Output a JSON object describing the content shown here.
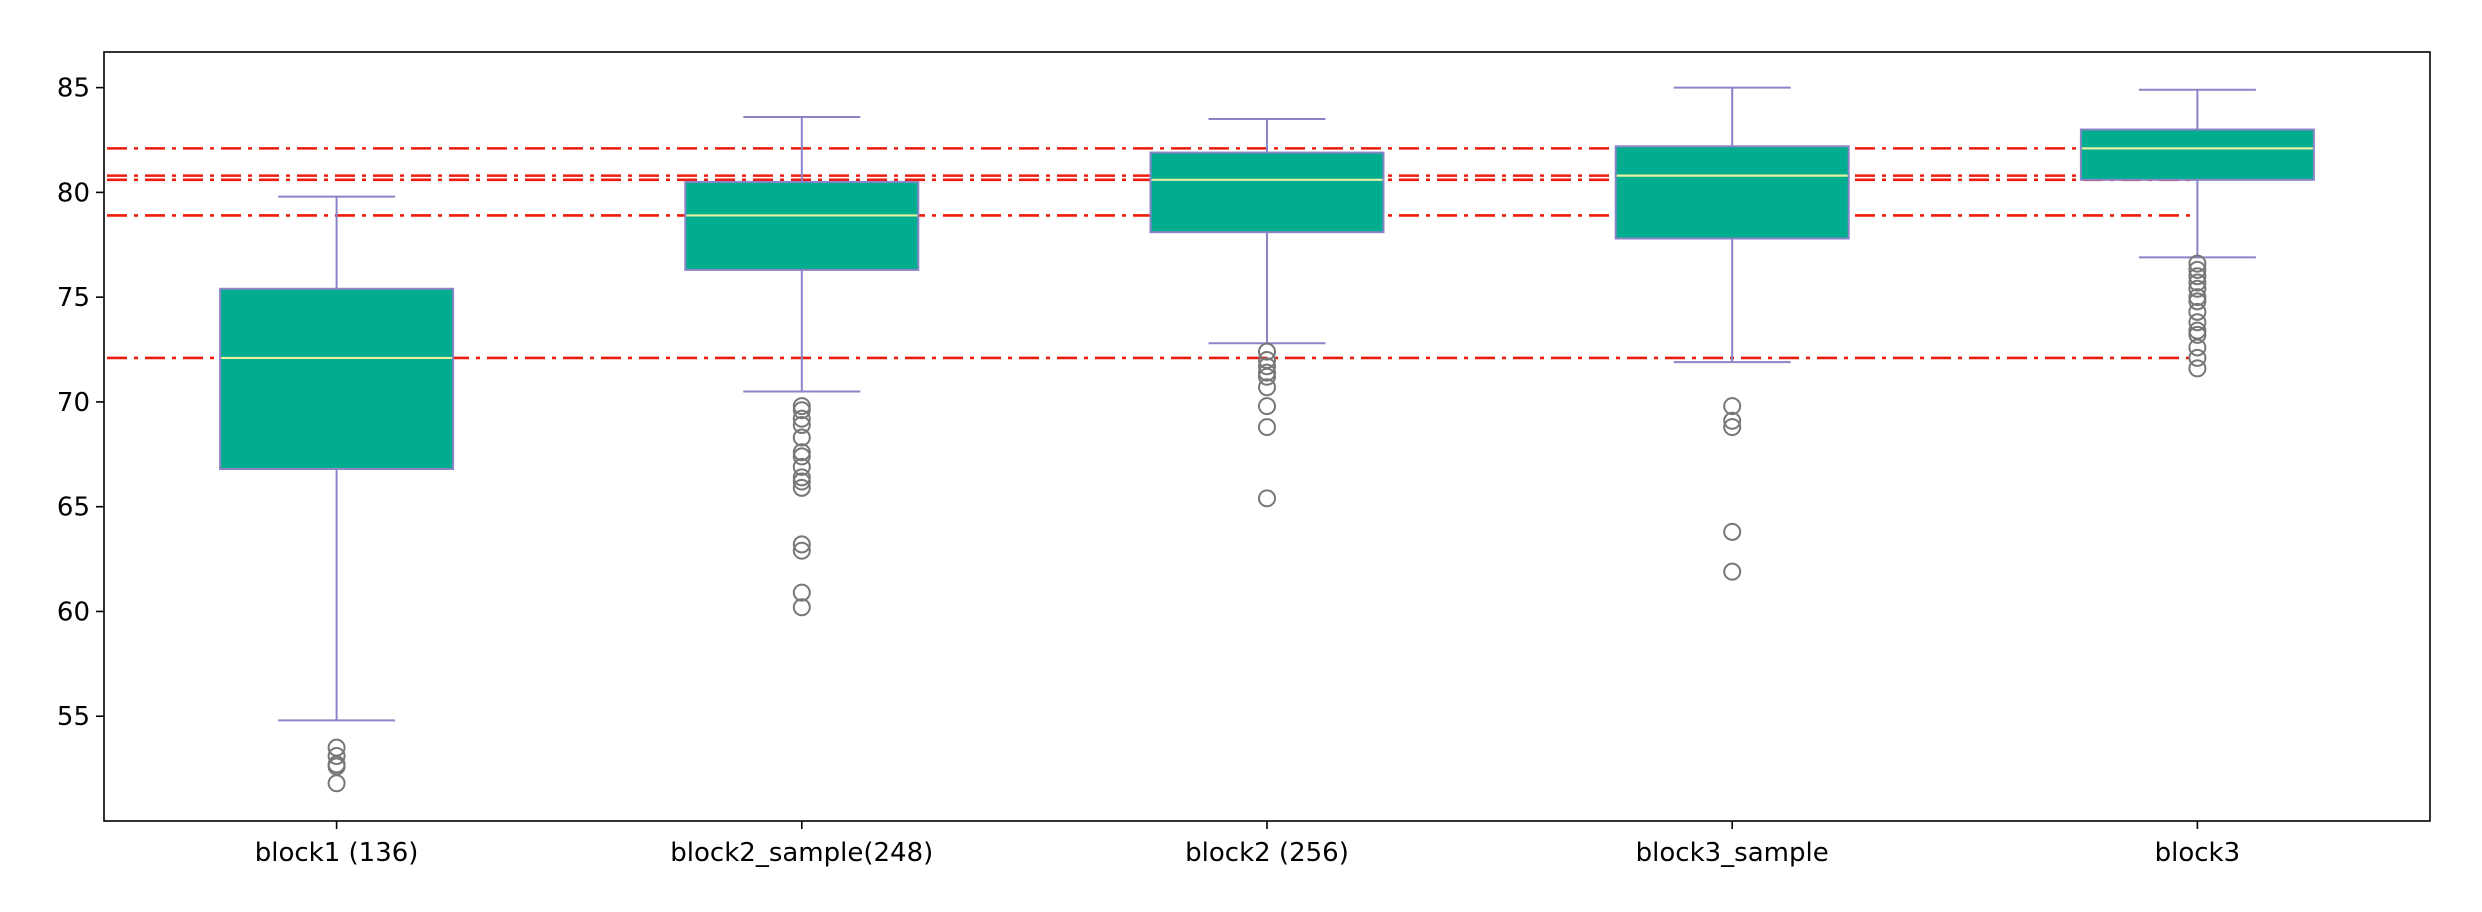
{
  "chart_data": {
    "type": "box",
    "title": "",
    "xlabel": "",
    "ylabel": "",
    "categories": [
      "block1 (136)",
      "block2_sample(248)",
      "block2 (256)",
      "block3_sample",
      "block3"
    ],
    "boxes": [
      {
        "label": "block1 (136)",
        "whisker_low": 54.8,
        "q1": 66.8,
        "median": 72.1,
        "q3": 75.4,
        "whisker_high": 79.8,
        "outliers": [
          53.5,
          53.1,
          52.7,
          52.6,
          51.8
        ]
      },
      {
        "label": "block2_sample(248)",
        "whisker_low": 70.5,
        "q1": 76.3,
        "median": 78.9,
        "q3": 80.5,
        "whisker_high": 83.6,
        "outliers": [
          69.8,
          69.6,
          69.2,
          68.9,
          68.3,
          67.6,
          67.4,
          66.9,
          66.4,
          66.2,
          65.9,
          63.2,
          62.9,
          60.9,
          60.2
        ]
      },
      {
        "label": "block2 (256)",
        "whisker_low": 72.8,
        "q1": 78.1,
        "median": 80.6,
        "q3": 81.9,
        "whisker_high": 83.5,
        "outliers": [
          72.4,
          72.0,
          71.7,
          71.4,
          71.2,
          70.7,
          69.8,
          68.8,
          65.4
        ]
      },
      {
        "label": "block3_sample",
        "whisker_low": 71.9,
        "q1": 77.8,
        "median": 80.8,
        "q3": 82.2,
        "whisker_high": 85.0,
        "outliers": [
          69.8,
          69.1,
          68.8,
          63.8,
          61.9
        ]
      },
      {
        "label": "block3",
        "whisker_low": 76.9,
        "q1": 80.6,
        "median": 82.1,
        "q3": 83.0,
        "whisker_high": 84.9,
        "outliers": [
          76.6,
          76.3,
          76.0,
          75.7,
          75.4,
          75.0,
          74.8,
          74.3,
          73.8,
          73.4,
          73.2,
          72.6,
          72.1,
          71.6
        ]
      }
    ],
    "reference_lines": [
      82.1,
      80.8,
      80.6,
      78.9,
      72.1
    ],
    "ylim": [
      50.0,
      86.7
    ],
    "yticks": [
      55,
      60,
      65,
      70,
      75,
      80,
      85
    ],
    "grid": false,
    "legend": "none",
    "colors": {
      "box_fill": "#00ad8e",
      "box_edge": "#8a84c8",
      "whisker": "#8a84c8",
      "median": "#e7f2a0",
      "outlier_edge": "#777777",
      "reference_line": "#ee1c0c",
      "axis": "#000000"
    }
  }
}
